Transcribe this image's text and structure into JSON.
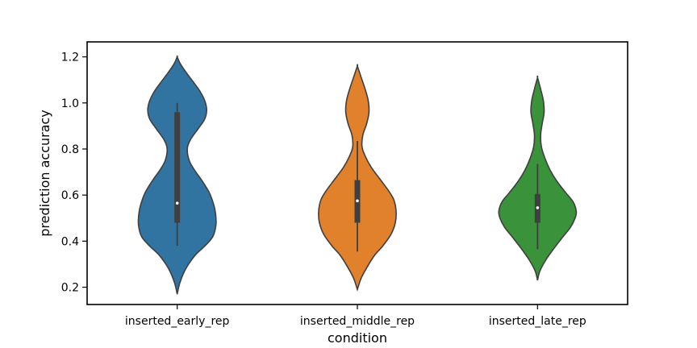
{
  "chart_data": {
    "type": "violin",
    "title": "",
    "xlabel": "condition",
    "ylabel": "prediction accuracy",
    "ylim": [
      0.125,
      1.265
    ],
    "yticks": [
      0.2,
      0.4,
      0.6,
      0.8,
      1.0,
      1.2
    ],
    "ytick_labels": [
      "0.2",
      "0.4",
      "0.6",
      "0.8",
      "1.0",
      "1.2"
    ],
    "categories": [
      "inserted_early_rep",
      "inserted_middle_rep",
      "inserted_late_rep"
    ],
    "series": [
      {
        "category": "inserted_early_rep",
        "color": "#3274a1",
        "kde_range": [
          0.17,
          1.2
        ],
        "density_profile": [
          [
            0.17,
            0.0
          ],
          [
            0.22,
            0.07
          ],
          [
            0.28,
            0.22
          ],
          [
            0.34,
            0.47
          ],
          [
            0.38,
            0.72
          ],
          [
            0.42,
            0.92
          ],
          [
            0.47,
            1.0
          ],
          [
            0.52,
            0.99
          ],
          [
            0.56,
            0.94
          ],
          [
            0.61,
            0.83
          ],
          [
            0.66,
            0.65
          ],
          [
            0.71,
            0.44
          ],
          [
            0.75,
            0.31
          ],
          [
            0.8,
            0.26
          ],
          [
            0.84,
            0.34
          ],
          [
            0.89,
            0.55
          ],
          [
            0.93,
            0.71
          ],
          [
            0.97,
            0.76
          ],
          [
            1.01,
            0.71
          ],
          [
            1.05,
            0.59
          ],
          [
            1.09,
            0.42
          ],
          [
            1.13,
            0.24
          ],
          [
            1.17,
            0.08
          ],
          [
            1.2,
            0.0
          ]
        ],
        "whisker": [
          0.38,
          1.0
        ],
        "box": [
          0.48,
          0.96
        ],
        "median": 0.565
      },
      {
        "category": "inserted_middle_rep",
        "color": "#e1812c",
        "kde_range": [
          0.19,
          1.16
        ],
        "density_profile": [
          [
            0.19,
            0.0
          ],
          [
            0.24,
            0.1
          ],
          [
            0.29,
            0.26
          ],
          [
            0.34,
            0.45
          ],
          [
            0.38,
            0.66
          ],
          [
            0.43,
            0.87
          ],
          [
            0.48,
            0.98
          ],
          [
            0.53,
            1.0
          ],
          [
            0.58,
            0.94
          ],
          [
            0.62,
            0.8
          ],
          [
            0.67,
            0.58
          ],
          [
            0.72,
            0.36
          ],
          [
            0.77,
            0.2
          ],
          [
            0.81,
            0.12
          ],
          [
            0.86,
            0.14
          ],
          [
            0.91,
            0.24
          ],
          [
            0.96,
            0.3
          ],
          [
            1.01,
            0.28
          ],
          [
            1.06,
            0.2
          ],
          [
            1.11,
            0.1
          ],
          [
            1.16,
            0.0
          ]
        ],
        "whisker": [
          0.355,
          0.835
        ],
        "box": [
          0.48,
          0.665
        ],
        "median": 0.575
      },
      {
        "category": "inserted_late_rep",
        "color": "#3a923a",
        "kde_range": [
          0.23,
          1.11
        ],
        "density_profile": [
          [
            0.23,
            0.0
          ],
          [
            0.27,
            0.06
          ],
          [
            0.32,
            0.22
          ],
          [
            0.37,
            0.43
          ],
          [
            0.42,
            0.66
          ],
          [
            0.46,
            0.85
          ],
          [
            0.5,
            0.97
          ],
          [
            0.53,
            1.0
          ],
          [
            0.57,
            0.92
          ],
          [
            0.61,
            0.73
          ],
          [
            0.66,
            0.5
          ],
          [
            0.71,
            0.32
          ],
          [
            0.76,
            0.19
          ],
          [
            0.81,
            0.1
          ],
          [
            0.86,
            0.08
          ],
          [
            0.91,
            0.12
          ],
          [
            0.96,
            0.17
          ],
          [
            1.01,
            0.15
          ],
          [
            1.06,
            0.08
          ],
          [
            1.11,
            0.0
          ]
        ],
        "whisker": [
          0.365,
          0.735
        ],
        "box": [
          0.48,
          0.605
        ],
        "median": 0.545
      }
    ],
    "grid": false,
    "legend": "none"
  }
}
